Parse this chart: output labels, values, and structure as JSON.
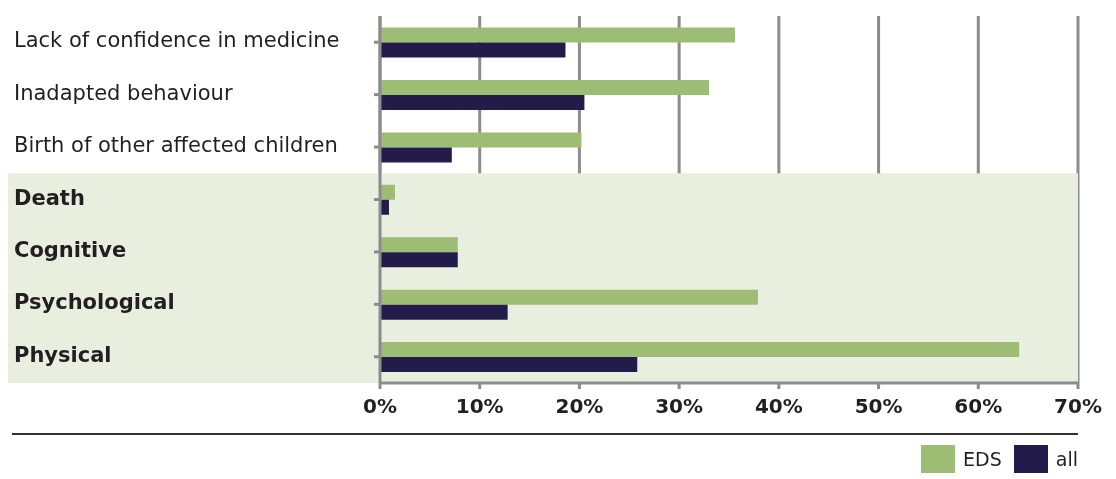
{
  "chart_data": {
    "type": "bar",
    "orientation": "horizontal",
    "categories": [
      "Lack of confidence in medicine",
      "Inadapted behaviour",
      "Birth of other affected children",
      "Death",
      "Cognitive",
      "Psychological",
      "Physical"
    ],
    "series": [
      {
        "name": "EDS",
        "color": "#9dbd74",
        "values": [
          35.6,
          33,
          20.2,
          1.5,
          7.8,
          37.9,
          64.1
        ]
      },
      {
        "name": "all",
        "color": "#231c4a",
        "values": [
          18.6,
          20.5,
          7.2,
          0.9,
          7.8,
          12.8,
          25.8
        ]
      }
    ],
    "xlim": [
      0,
      70
    ],
    "xticks": [
      {
        "value": 0,
        "label": "0%"
      },
      {
        "value": 10,
        "label": "10%"
      },
      {
        "value": 20,
        "label": "20%"
      },
      {
        "value": 30,
        "label": "30%"
      },
      {
        "value": 40,
        "label": "40%"
      },
      {
        "value": 50,
        "label": "50%"
      },
      {
        "value": 60,
        "label": "60%"
      },
      {
        "value": 70,
        "label": "70%"
      }
    ],
    "bands": [
      {
        "axis": "y",
        "from": "Death",
        "to": "Physical",
        "color": "#e8efdf"
      }
    ],
    "grid": "x",
    "legend": "bottom right"
  }
}
